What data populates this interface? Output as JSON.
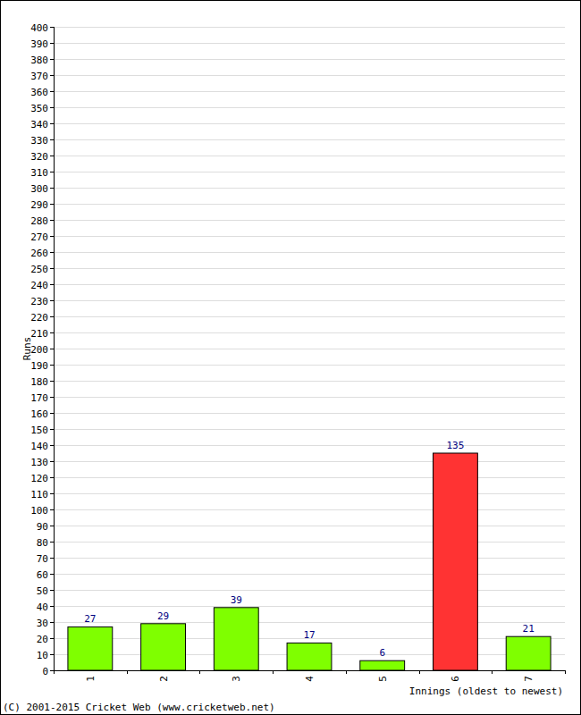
{
  "chart_data": {
    "type": "bar",
    "categories": [
      "1",
      "2",
      "3",
      "4",
      "5",
      "6",
      "7"
    ],
    "values": [
      27,
      29,
      39,
      17,
      6,
      135,
      21
    ],
    "colors": [
      "#7fff00",
      "#7fff00",
      "#7fff00",
      "#7fff00",
      "#7fff00",
      "#ff3333",
      "#7fff00"
    ],
    "x_label": "Innings (oldest to newest)",
    "y_label": "Runs",
    "annotations": [
      "(C) 2001-2015 Cricket Web (www.cricketweb.net)"
    ],
    "ylim": [
      0,
      400
    ],
    "yticks": [
      0,
      10,
      20,
      30,
      40,
      50,
      60,
      70,
      80,
      90,
      100,
      110,
      120,
      130,
      140,
      150,
      160,
      170,
      180,
      190,
      200,
      210,
      220,
      230,
      240,
      250,
      260,
      270,
      280,
      290,
      300,
      310,
      320,
      330,
      340,
      350,
      360,
      370,
      380,
      390,
      400
    ],
    "grid": true,
    "data_labels": true
  }
}
